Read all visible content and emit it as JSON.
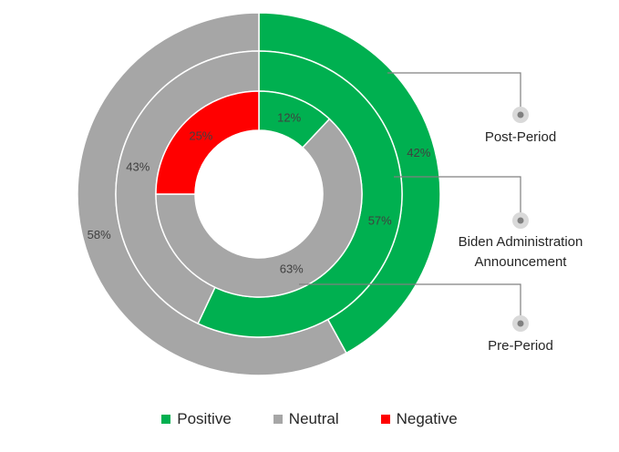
{
  "chart_data": {
    "type": "nested-donut",
    "categories": [
      "Positive",
      "Neutral",
      "Negative"
    ],
    "colors": {
      "Positive": "#00b050",
      "Neutral": "#a6a6a6",
      "Negative": "#ff0000"
    },
    "rings": [
      {
        "name": "Post-Period",
        "values": {
          "Positive": 42,
          "Neutral": 58,
          "Negative": 0
        },
        "labels": {
          "Positive": "42%",
          "Neutral": "58%"
        }
      },
      {
        "name": "Biden Administration Announcement",
        "values": {
          "Positive": 57,
          "Neutral": 43,
          "Negative": 0
        },
        "labels": {
          "Positive": "57%",
          "Neutral": "43%"
        }
      },
      {
        "name": "Pre-Period",
        "values": {
          "Positive": 12,
          "Neutral": 63,
          "Negative": 25
        },
        "labels": {
          "Positive": "12%",
          "Neutral": "63%",
          "Negative": "25%"
        }
      }
    ],
    "ring_label_lines": {
      "Post-Period": [
        "Post-Period"
      ],
      "Biden Administration Announcement": [
        "Biden Administration",
        "Announcement"
      ],
      "Pre-Period": [
        "Pre-Period"
      ]
    },
    "legend": [
      "Positive",
      "Neutral",
      "Negative"
    ],
    "legend_position": "bottom"
  }
}
